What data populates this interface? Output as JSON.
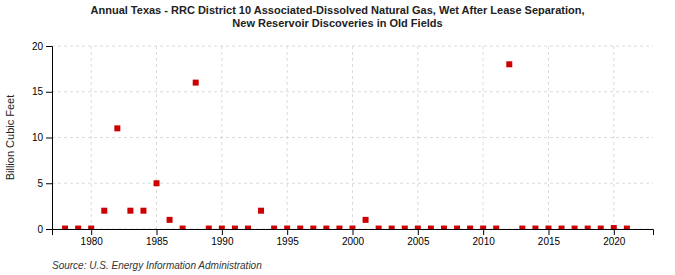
{
  "chart_data": {
    "type": "scatter",
    "title": "Annual Texas - RRC District 10 Associated-Dissolved Natural Gas, Wet After Lease Separation,\nNew Reservoir Discoveries in Old Fields",
    "ylabel": "Billion Cubic Feet",
    "source": "Source: U.S. Energy Information Administration",
    "x": [
      1978,
      1979,
      1980,
      1981,
      1982,
      1983,
      1984,
      1985,
      1986,
      1987,
      1988,
      1989,
      1990,
      1991,
      1992,
      1993,
      1994,
      1995,
      1996,
      1997,
      1998,
      1999,
      2000,
      2001,
      2002,
      2003,
      2004,
      2005,
      2006,
      2007,
      2008,
      2009,
      2010,
      2011,
      2012,
      2013,
      2014,
      2015,
      2016,
      2017,
      2018,
      2019,
      2020,
      2021
    ],
    "values": [
      0.05,
      0.05,
      0.05,
      2.0,
      11.0,
      2.0,
      2.0,
      5.0,
      1.0,
      0.05,
      16.0,
      0.05,
      0.05,
      0.05,
      0.05,
      2.0,
      0.05,
      0.05,
      0.05,
      0.05,
      0.05,
      0.05,
      0.05,
      1.0,
      0.05,
      0.05,
      0.05,
      0.05,
      0.05,
      0.05,
      0.05,
      0.05,
      0.05,
      0.05,
      18.0,
      0.05,
      0.05,
      0.05,
      0.05,
      0.05,
      0.05,
      0.05,
      0.1,
      0.05
    ],
    "color": "#cc0000",
    "marker": "square",
    "xlim": [
      1977,
      2023
    ],
    "ylim": [
      0,
      20
    ],
    "xticks": [
      1980,
      1985,
      1990,
      1995,
      2000,
      2005,
      2010,
      2015,
      2020
    ],
    "yticks": [
      0,
      5,
      10,
      15,
      20
    ],
    "grid": true
  }
}
